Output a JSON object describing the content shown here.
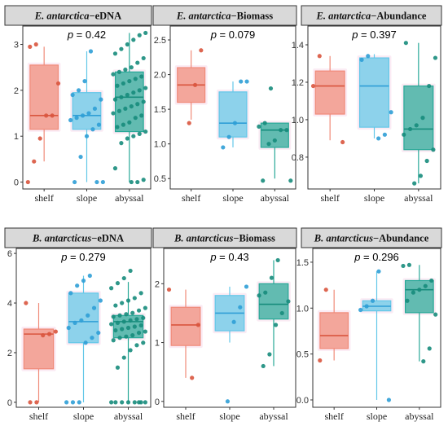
{
  "colors": {
    "shelf": "#F08A78",
    "slope": "#63C7E8",
    "abyssal": "#27A897",
    "shelf_point": "#D9553E",
    "slope_point": "#2F9ED6",
    "abyssal_point": "#178C7C",
    "strip_bg": "#D9D9D9",
    "panel_border": "#333333"
  },
  "chart_data": [
    {
      "type": "box",
      "title_italic": "E. antarctica",
      "title_rest": "−eDNA",
      "p_label": "p",
      "p_value": "= 0.42",
      "categories": [
        "shelf",
        "slope",
        "abyssal"
      ],
      "yticks": [
        "0",
        "1",
        "2",
        "3"
      ],
      "ylim": [
        -0.15,
        3.4
      ],
      "boxes": [
        {
          "q1": 1.15,
          "median": 1.45,
          "q3": 2.55,
          "lo": 0.45,
          "hi": 2.95
        },
        {
          "q1": 1.15,
          "median": 1.45,
          "q3": 1.95,
          "lo": 0.0,
          "hi": 2.85
        },
        {
          "q1": 1.1,
          "median": 1.85,
          "q3": 2.4,
          "lo": 0.0,
          "hi": 3.25
        }
      ],
      "points": [
        [
          0.0,
          0.45,
          0.95,
          1.45,
          1.45,
          2.15,
          2.95,
          3.0
        ],
        [
          0.0,
          0.0,
          0.0,
          0.55,
          1.0,
          1.15,
          1.25,
          1.35,
          1.4,
          1.45,
          1.5,
          1.6,
          1.8,
          1.9,
          2.0,
          2.2,
          2.85
        ],
        [
          0.0,
          0.0,
          0.05,
          0.3,
          0.85,
          0.95,
          1.0,
          1.05,
          1.1,
          1.2,
          1.25,
          1.3,
          1.4,
          1.45,
          1.5,
          1.55,
          1.6,
          1.65,
          1.7,
          1.75,
          1.8,
          1.85,
          1.9,
          1.95,
          2.0,
          2.05,
          2.1,
          2.15,
          2.2,
          2.25,
          2.3,
          2.35,
          2.4,
          2.45,
          2.5,
          2.6,
          2.7,
          2.8,
          2.9,
          3.0,
          3.1,
          3.2,
          3.25
        ]
      ]
    },
    {
      "type": "box",
      "title_italic": "E. antarctica",
      "title_rest": "−Biomass",
      "p_label": "p",
      "p_value": "= 0.079",
      "categories": [
        "shelf",
        "slope",
        "abyssal"
      ],
      "yticks": [
        "0.5",
        "1.0",
        "1.5",
        "2.0",
        "2.5"
      ],
      "ylim": [
        0.35,
        2.7
      ],
      "boxes": [
        {
          "q1": 1.6,
          "median": 1.85,
          "q3": 2.1,
          "lo": 1.35,
          "hi": 2.35
        },
        {
          "q1": 1.1,
          "median": 1.3,
          "q3": 1.75,
          "lo": 0.95,
          "hi": 1.9
        },
        {
          "q1": 0.95,
          "median": 1.2,
          "q3": 1.3,
          "lo": 0.5,
          "hi": 1.3
        }
      ],
      "points": [
        [
          1.3,
          1.85,
          2.35
        ],
        [
          0.95,
          1.1,
          1.3,
          1.9,
          1.9
        ],
        [
          0.47,
          0.47,
          1.0,
          1.05,
          1.2,
          1.2,
          1.25,
          1.3,
          1.8
        ]
      ]
    },
    {
      "type": "box",
      "title_italic": "E. antarctica",
      "title_rest": "−Abundance",
      "p_label": "p",
      "p_value": "= 0.397",
      "categories": [
        "shelf",
        "slope",
        "abyssal"
      ],
      "yticks": [
        "0.8",
        "1.0",
        "1.2",
        "1.4"
      ],
      "ylim": [
        0.63,
        1.5
      ],
      "boxes": [
        {
          "q1": 1.03,
          "median": 1.18,
          "q3": 1.26,
          "lo": 0.89,
          "hi": 1.34
        },
        {
          "q1": 0.96,
          "median": 1.18,
          "q3": 1.33,
          "lo": 0.9,
          "hi": 1.35
        },
        {
          "q1": 0.84,
          "median": 0.95,
          "q3": 1.18,
          "lo": 0.66,
          "hi": 1.41
        }
      ],
      "points": [
        [
          0.88,
          1.18,
          1.34
        ],
        [
          0.9,
          0.92,
          1.04,
          1.32,
          1.34
        ],
        [
          0.66,
          0.7,
          0.78,
          0.84,
          0.92,
          0.95,
          0.97,
          1.01,
          1.18,
          1.33,
          1.41
        ]
      ]
    },
    {
      "type": "box",
      "title_italic": "B. antarcticus",
      "title_rest": "−eDNA",
      "p_label": "p",
      "p_value": "= 0.279",
      "categories": [
        "shelf",
        "slope",
        "abyssal"
      ],
      "yticks": [
        "0",
        "2",
        "4",
        "6"
      ],
      "ylim": [
        -0.2,
        6.2
      ],
      "boxes": [
        {
          "q1": 1.35,
          "median": 2.75,
          "q3": 2.95,
          "lo": 0.0,
          "hi": 4.0
        },
        {
          "q1": 2.4,
          "median": 3.25,
          "q3": 4.4,
          "lo": 0.0,
          "hi": 5.1
        },
        {
          "q1": 2.6,
          "median": 3.25,
          "q3": 3.5,
          "lo": 0.0,
          "hi": 4.85
        }
      ],
      "points": [
        [
          0.0,
          0.0,
          2.7,
          2.75,
          2.85,
          4.0
        ],
        [
          0.0,
          0.0,
          0.0,
          2.4,
          2.6,
          2.8,
          3.0,
          3.2,
          3.3,
          3.5,
          3.8,
          4.1,
          4.4,
          4.7,
          4.9,
          5.1
        ],
        [
          0.0,
          0.0,
          0.0,
          0.0,
          0.0,
          0.0,
          0.0,
          0.0,
          1.4,
          1.8,
          2.1,
          2.3,
          2.4,
          2.5,
          2.6,
          2.65,
          2.7,
          2.8,
          2.85,
          2.9,
          2.95,
          3.0,
          3.05,
          3.1,
          3.15,
          3.2,
          3.25,
          3.3,
          3.35,
          3.4,
          3.45,
          3.5,
          3.55,
          3.6,
          3.7,
          3.8,
          3.9,
          4.0,
          4.1,
          4.2,
          4.4,
          4.6,
          4.8,
          5.0,
          5.3
        ]
      ]
    },
    {
      "type": "box",
      "title_italic": "B. antarcticus",
      "title_rest": "−Biomass",
      "p_label": "p",
      "p_value": "= 0.43",
      "categories": [
        "shelf",
        "slope",
        "abyssal"
      ],
      "yticks": [
        "0",
        "1",
        "2"
      ],
      "ylim": [
        -0.1,
        2.6
      ],
      "boxes": [
        {
          "q1": 0.95,
          "median": 1.3,
          "q3": 1.6,
          "lo": 0.4,
          "hi": 1.9
        },
        {
          "q1": 1.2,
          "median": 1.5,
          "q3": 1.8,
          "lo": 1.0,
          "hi": 1.95
        },
        {
          "q1": 1.4,
          "median": 1.65,
          "q3": 2.0,
          "lo": 0.6,
          "hi": 2.4
        }
      ],
      "points": [
        [
          0.4,
          1.3,
          1.9
        ],
        [
          0.0,
          1.35,
          1.6,
          1.95
        ],
        [
          0.6,
          0.8,
          1.3,
          1.5,
          1.7,
          1.8,
          1.85,
          2.1,
          2.4
        ]
      ]
    },
    {
      "type": "box",
      "title_italic": "B. antarcticus",
      "title_rest": "−Abundance",
      "p_label": "p",
      "p_value": "= 0.296",
      "categories": [
        "shelf",
        "slope",
        "abyssal"
      ],
      "yticks": [
        "0.0",
        "0.5",
        "1.0",
        "1.5"
      ],
      "ylim": [
        -0.08,
        1.65
      ],
      "boxes": [
        {
          "q1": 0.56,
          "median": 0.7,
          "q3": 0.95,
          "lo": 0.43,
          "hi": 1.2
        },
        {
          "q1": 0.97,
          "median": 1.02,
          "q3": 1.08,
          "lo": 0.0,
          "hi": 1.4
        },
        {
          "q1": 0.95,
          "median": 1.2,
          "q3": 1.3,
          "lo": 0.42,
          "hi": 1.47
        }
      ],
      "points": [
        [
          0.43,
          1.2
        ],
        [
          0.0,
          0.98,
          1.02,
          1.08,
          1.4
        ],
        [
          0.42,
          0.56,
          0.93,
          1.08,
          1.17,
          1.2,
          1.24,
          1.3,
          1.46,
          1.47
        ]
      ]
    }
  ]
}
